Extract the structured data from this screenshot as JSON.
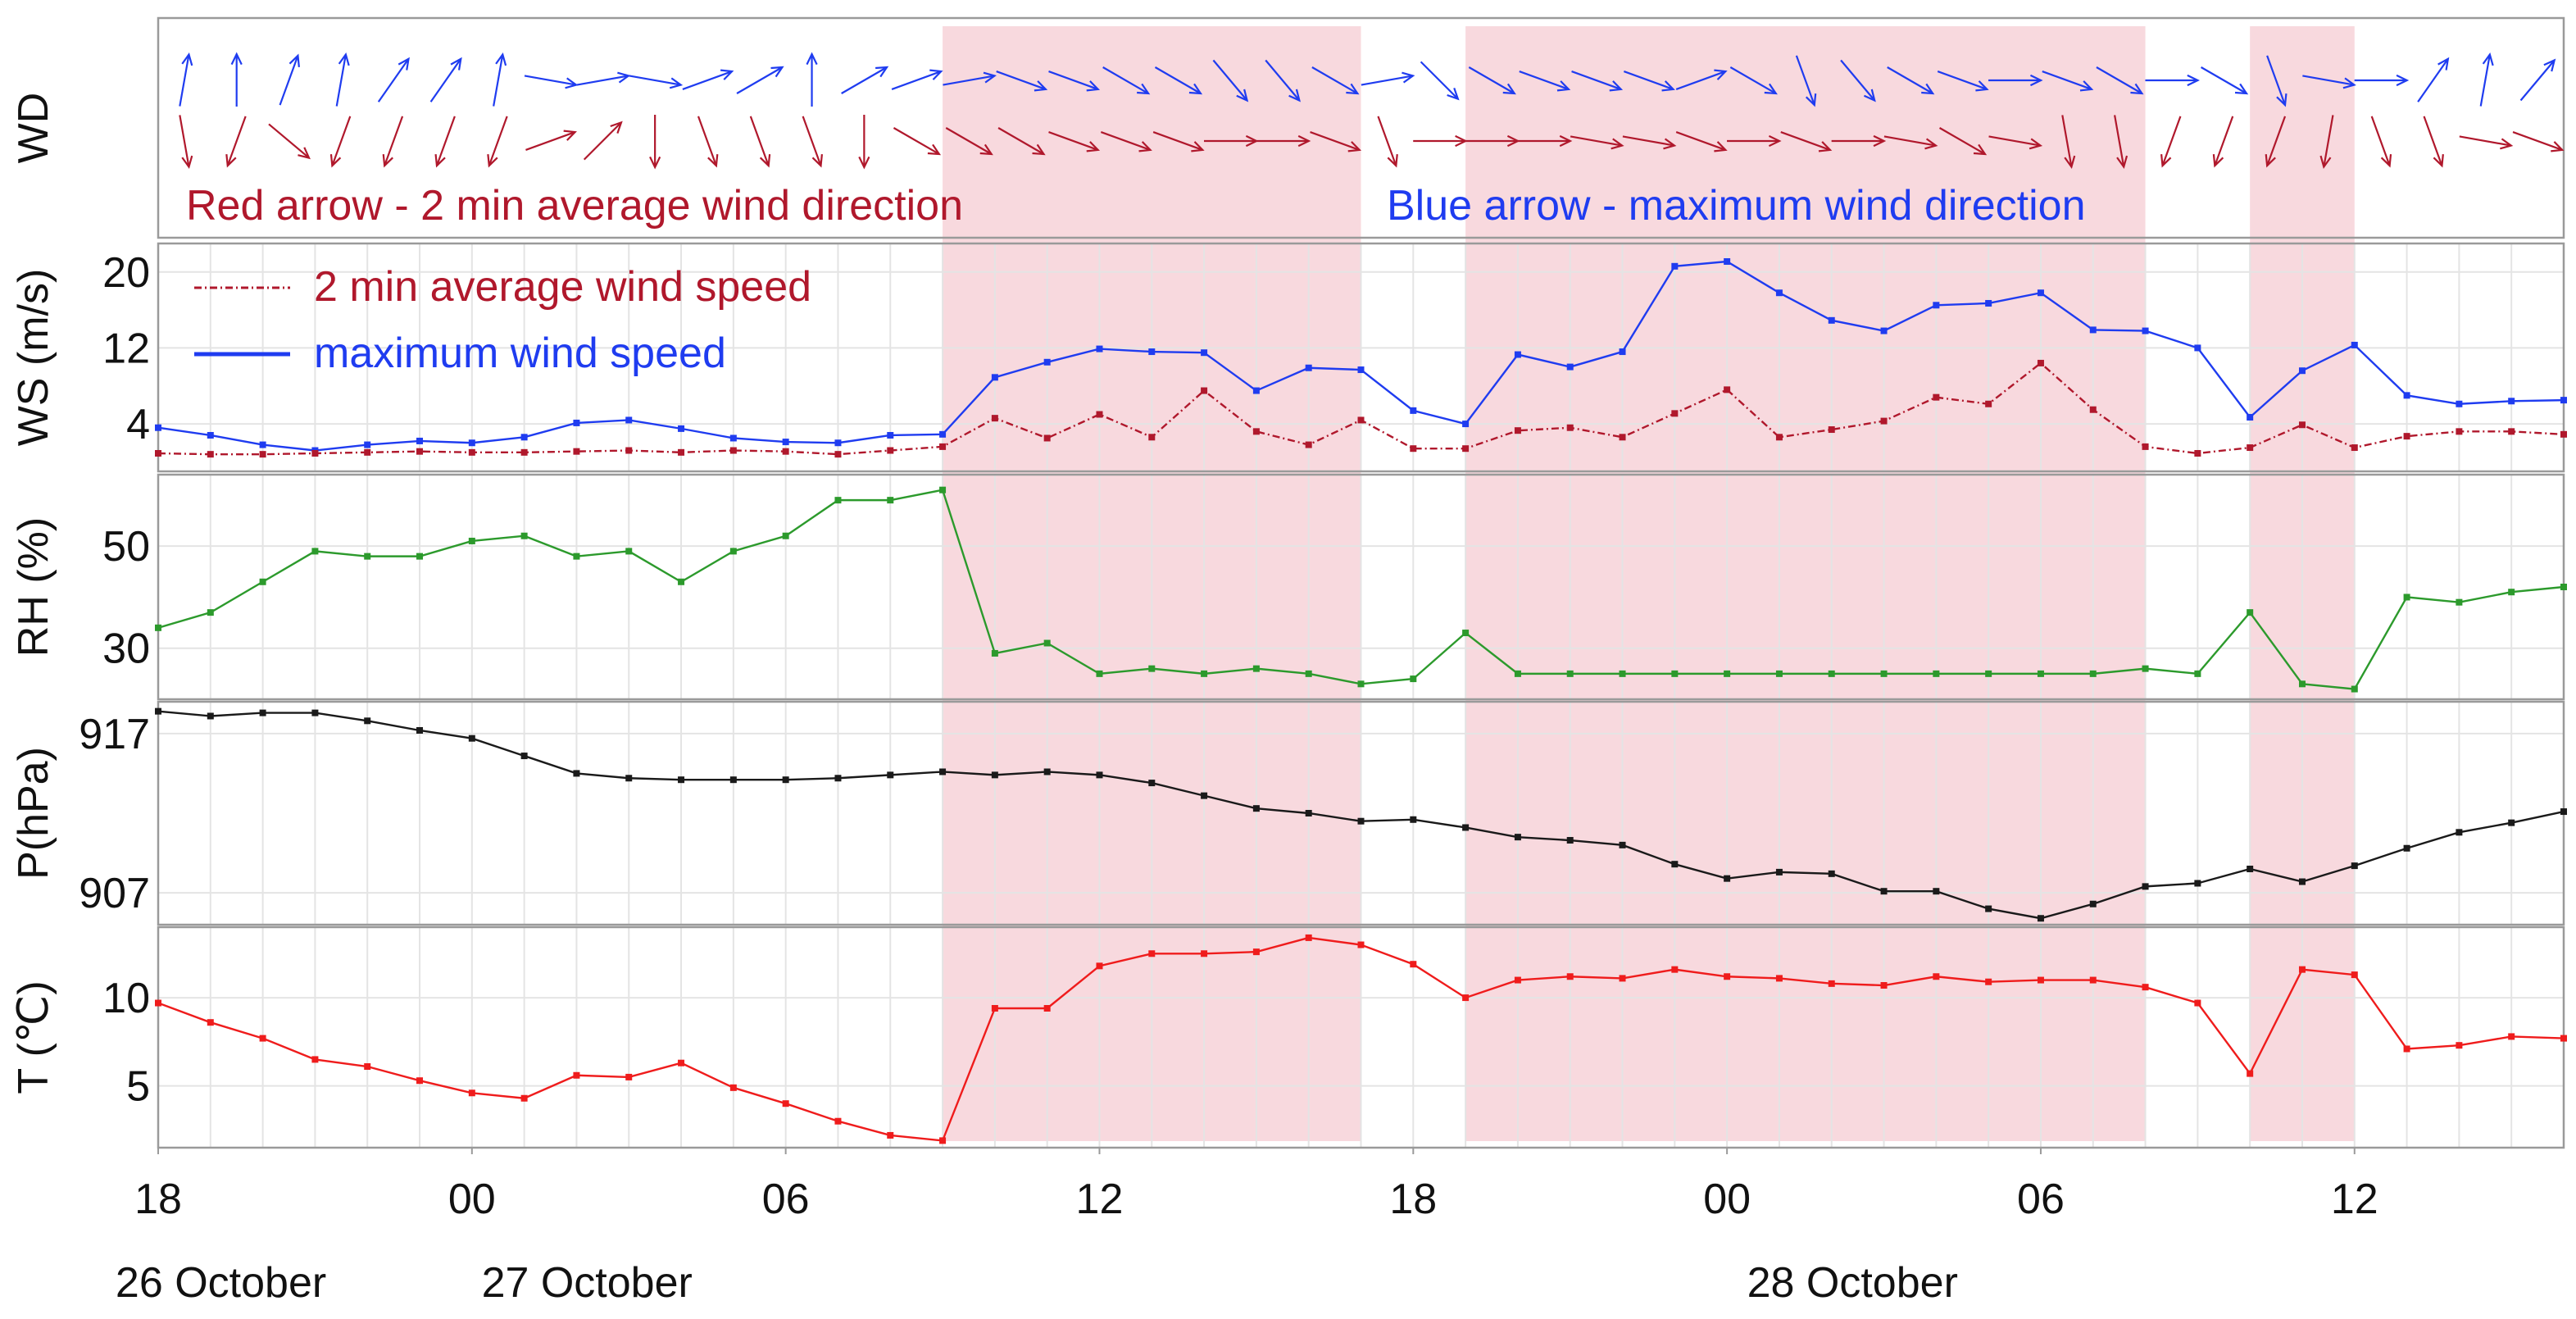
{
  "chart_data": {
    "type": "line",
    "title": "",
    "x_unit": "hours since 18:00 on 26 October",
    "x_range": [
      0,
      46
    ],
    "x_ticks": [
      {
        "x": 0,
        "label": "18"
      },
      {
        "x": 6,
        "label": "00"
      },
      {
        "x": 12,
        "label": "06"
      },
      {
        "x": 18,
        "label": "12"
      },
      {
        "x": 24,
        "label": "18"
      },
      {
        "x": 30,
        "label": "00"
      },
      {
        "x": 36,
        "label": "06"
      },
      {
        "x": 42,
        "label": "12"
      }
    ],
    "date_labels": [
      {
        "x": 1.2,
        "label": "26 October"
      },
      {
        "x": 8.2,
        "label": "27 October"
      },
      {
        "x": 32.4,
        "label": "28 October"
      }
    ],
    "shaded_periods": [
      [
        15,
        23
      ],
      [
        25,
        38
      ],
      [
        40,
        42
      ]
    ],
    "shade_color": "#f8d9de",
    "panels": [
      {
        "id": "wd",
        "ylabel": "WD",
        "legend": [
          {
            "label": "Red arrow - 2 min average wind direction",
            "color": "#b0182c"
          },
          {
            "label": "Blue arrow - maximum wind direction",
            "color": "#1f3cf0"
          }
        ],
        "series": [
          {
            "name": "maximum wind direction",
            "color": "#1f3cf0",
            "x": [
              0.5,
              1.5,
              2.5,
              3.5,
              4.5,
              5.5,
              6.5,
              7.5,
              8.5,
              9.5,
              10.5,
              11.5,
              12.5,
              13.5,
              14.5,
              15.5,
              16.5,
              17.5,
              18.5,
              19.5,
              20.5,
              21.5,
              22.5,
              23.5,
              24.5,
              25.5,
              26.5,
              27.5,
              28.5,
              29.5,
              30.5,
              31.5,
              32.5,
              33.5,
              34.5,
              35.5,
              36.5,
              37.5,
              38.5,
              39.5,
              40.5,
              41.5,
              42.5,
              43.5,
              44.5,
              45.5
            ],
            "direction_deg": [
              10,
              0,
              20,
              10,
              35,
              35,
              10,
              100,
              80,
              100,
              70,
              60,
              0,
              60,
              70,
              80,
              110,
              110,
              120,
              120,
              140,
              140,
              120,
              80,
              135,
              120,
              110,
              110,
              110,
              70,
              120,
              160,
              140,
              120,
              110,
              90,
              110,
              120,
              90,
              120,
              160,
              100,
              90,
              35,
              10,
              40
            ]
          },
          {
            "name": "2 min average wind direction",
            "color": "#b0182c",
            "x": [
              0.5,
              1.5,
              2.5,
              3.5,
              4.5,
              5.5,
              6.5,
              7.5,
              8.5,
              9.5,
              10.5,
              11.5,
              12.5,
              13.5,
              14.5,
              15.5,
              16.5,
              17.5,
              18.5,
              19.5,
              20.5,
              21.5,
              22.5,
              23.5,
              24.5,
              25.5,
              26.5,
              27.5,
              28.5,
              29.5,
              30.5,
              31.5,
              32.5,
              33.5,
              34.5,
              35.5,
              36.5,
              37.5,
              38.5,
              39.5,
              40.5,
              41.5,
              42.5,
              43.5,
              44.5,
              45.5
            ],
            "direction_deg": [
              170,
              200,
              130,
              200,
              200,
              200,
              200,
              70,
              45,
              180,
              160,
              160,
              160,
              180,
              120,
              120,
              120,
              110,
              110,
              110,
              90,
              90,
              110,
              160,
              90,
              90,
              90,
              100,
              100,
              110,
              90,
              110,
              90,
              100,
              120,
              100,
              170,
              170,
              200,
              200,
              200,
              190,
              160,
              160,
              100,
              110
            ]
          }
        ]
      },
      {
        "id": "ws",
        "ylabel": "WS (m/s)",
        "ylim": [
          -1,
          23
        ],
        "yticks": [
          4,
          12,
          20
        ],
        "legend": [
          {
            "label": "2 min average wind speed",
            "color": "#b0182c"
          },
          {
            "label": "maximum wind speed",
            "color": "#1f3cf0"
          }
        ],
        "series": [
          {
            "name": "maximum wind speed",
            "color": "#1f3cf0",
            "style": "solid",
            "x": [
              0,
              1,
              2,
              3,
              4,
              5,
              6,
              7,
              8,
              9,
              10,
              11,
              12,
              13,
              14,
              15,
              16,
              17,
              18,
              19,
              20,
              21,
              22,
              23,
              24,
              25,
              26,
              27,
              28,
              29,
              30,
              31,
              32,
              33,
              34,
              35,
              36,
              37,
              38,
              39,
              40,
              41,
              42,
              43,
              44,
              45,
              46
            ],
            "values": [
              3.6,
              2.8,
              1.8,
              1.2,
              1.8,
              2.2,
              2.0,
              2.6,
              4.1,
              4.4,
              3.5,
              2.5,
              2.1,
              2.0,
              2.8,
              2.9,
              8.9,
              10.5,
              11.9,
              11.6,
              11.5,
              7.5,
              9.9,
              9.7,
              5.4,
              4.0,
              11.3,
              10.0,
              11.6,
              20.6,
              21.1,
              17.8,
              14.9,
              13.8,
              16.5,
              16.7,
              17.8,
              13.9,
              13.8,
              12.0,
              4.7,
              9.6,
              12.3,
              7.0,
              6.1,
              6.4,
              6.5
            ]
          },
          {
            "name": "2 min average wind speed",
            "color": "#b0182c",
            "style": "dash-dot",
            "x": [
              0,
              1,
              2,
              3,
              4,
              5,
              6,
              7,
              8,
              9,
              10,
              11,
              12,
              13,
              14,
              15,
              16,
              17,
              18,
              19,
              20,
              21,
              22,
              23,
              24,
              25,
              26,
              27,
              28,
              29,
              30,
              31,
              32,
              33,
              34,
              35,
              36,
              37,
              38,
              39,
              40,
              41,
              42,
              43,
              44,
              45,
              46
            ],
            "values": [
              0.9,
              0.8,
              0.8,
              0.9,
              1.0,
              1.1,
              1.0,
              1.0,
              1.1,
              1.2,
              1.0,
              1.2,
              1.1,
              0.8,
              1.2,
              1.6,
              4.6,
              2.5,
              5.0,
              2.6,
              7.5,
              3.2,
              1.8,
              4.4,
              1.4,
              1.4,
              3.3,
              3.6,
              2.6,
              5.1,
              7.6,
              2.6,
              3.4,
              4.3,
              6.8,
              6.1,
              10.4,
              5.5,
              1.6,
              0.9,
              1.5,
              3.9,
              1.5,
              2.7,
              3.2,
              3.2,
              2.9
            ]
          }
        ]
      },
      {
        "id": "rh",
        "ylabel": "RH (%)",
        "ylim": [
          20,
          64
        ],
        "yticks": [
          30,
          50
        ],
        "series": [
          {
            "name": "relative humidity",
            "color": "#2c9a2c",
            "x": [
              0,
              1,
              2,
              3,
              4,
              5,
              6,
              7,
              8,
              9,
              10,
              11,
              12,
              13,
              14,
              15,
              16,
              17,
              18,
              19,
              20,
              21,
              22,
              23,
              24,
              25,
              26,
              27,
              28,
              29,
              30,
              31,
              32,
              33,
              34,
              35,
              36,
              37,
              38,
              39,
              40,
              41,
              42,
              43,
              44,
              45,
              46
            ],
            "values": [
              34,
              37,
              43,
              49,
              48,
              48,
              51,
              52,
              48,
              49,
              43,
              49,
              52,
              59,
              59,
              61,
              29,
              31,
              25,
              26,
              25,
              26,
              25,
              23,
              24,
              33,
              25,
              25,
              25,
              25,
              25,
              25,
              25,
              25,
              25,
              25,
              25,
              25,
              26,
              25,
              37,
              23,
              22,
              40,
              39,
              41,
              42
            ]
          }
        ]
      },
      {
        "id": "p",
        "ylabel": "P(hPa)",
        "ylim": [
          905,
          919
        ],
        "yticks": [
          907,
          917
        ],
        "series": [
          {
            "name": "pressure",
            "color": "#1a1a1a",
            "x": [
              0,
              1,
              2,
              3,
              4,
              5,
              6,
              7,
              8,
              9,
              10,
              11,
              12,
              13,
              14,
              15,
              16,
              17,
              18,
              19,
              20,
              21,
              22,
              23,
              24,
              25,
              26,
              27,
              28,
              29,
              30,
              31,
              32,
              33,
              34,
              35,
              36,
              37,
              38,
              39,
              40,
              41,
              42,
              43,
              44,
              45,
              46
            ],
            "values": [
              918.4,
              918.1,
              918.3,
              918.3,
              917.8,
              917.2,
              916.7,
              915.6,
              914.5,
              914.2,
              914.1,
              914.1,
              914.1,
              914.2,
              914.4,
              914.6,
              914.4,
              914.6,
              914.4,
              913.9,
              913.1,
              912.3,
              912.0,
              911.5,
              911.6,
              911.1,
              910.5,
              910.3,
              910.0,
              908.8,
              907.9,
              908.3,
              908.2,
              907.1,
              907.1,
              906.0,
              905.4,
              906.3,
              907.4,
              907.6,
              908.5,
              907.7,
              908.7,
              909.8,
              910.8,
              911.4,
              912.1
            ]
          }
        ]
      },
      {
        "id": "t",
        "ylabel": "T (℃)",
        "ylim": [
          1.5,
          14
        ],
        "yticks": [
          5,
          10
        ],
        "series": [
          {
            "name": "temperature",
            "color": "#ef1c1c",
            "x": [
              0,
              1,
              2,
              3,
              4,
              5,
              6,
              7,
              8,
              9,
              10,
              11,
              12,
              13,
              14,
              15,
              16,
              17,
              18,
              19,
              20,
              21,
              22,
              23,
              24,
              25,
              26,
              27,
              28,
              29,
              30,
              31,
              32,
              33,
              34,
              35,
              36,
              37,
              38,
              39,
              40,
              41,
              42,
              43,
              44,
              45,
              46
            ],
            "values": [
              9.7,
              8.6,
              7.7,
              6.5,
              6.1,
              5.3,
              4.6,
              4.3,
              5.6,
              5.5,
              6.3,
              4.9,
              4.0,
              3.0,
              2.2,
              1.9,
              9.4,
              9.4,
              11.8,
              12.5,
              12.5,
              12.6,
              13.4,
              13.0,
              11.9,
              10.0,
              11.0,
              11.2,
              11.1,
              11.6,
              11.2,
              11.1,
              10.8,
              10.7,
              11.2,
              10.9,
              11.0,
              11.0,
              10.6,
              9.7,
              5.7,
              11.6,
              11.3,
              7.1,
              7.3,
              7.8,
              7.7
            ]
          }
        ]
      }
    ]
  }
}
